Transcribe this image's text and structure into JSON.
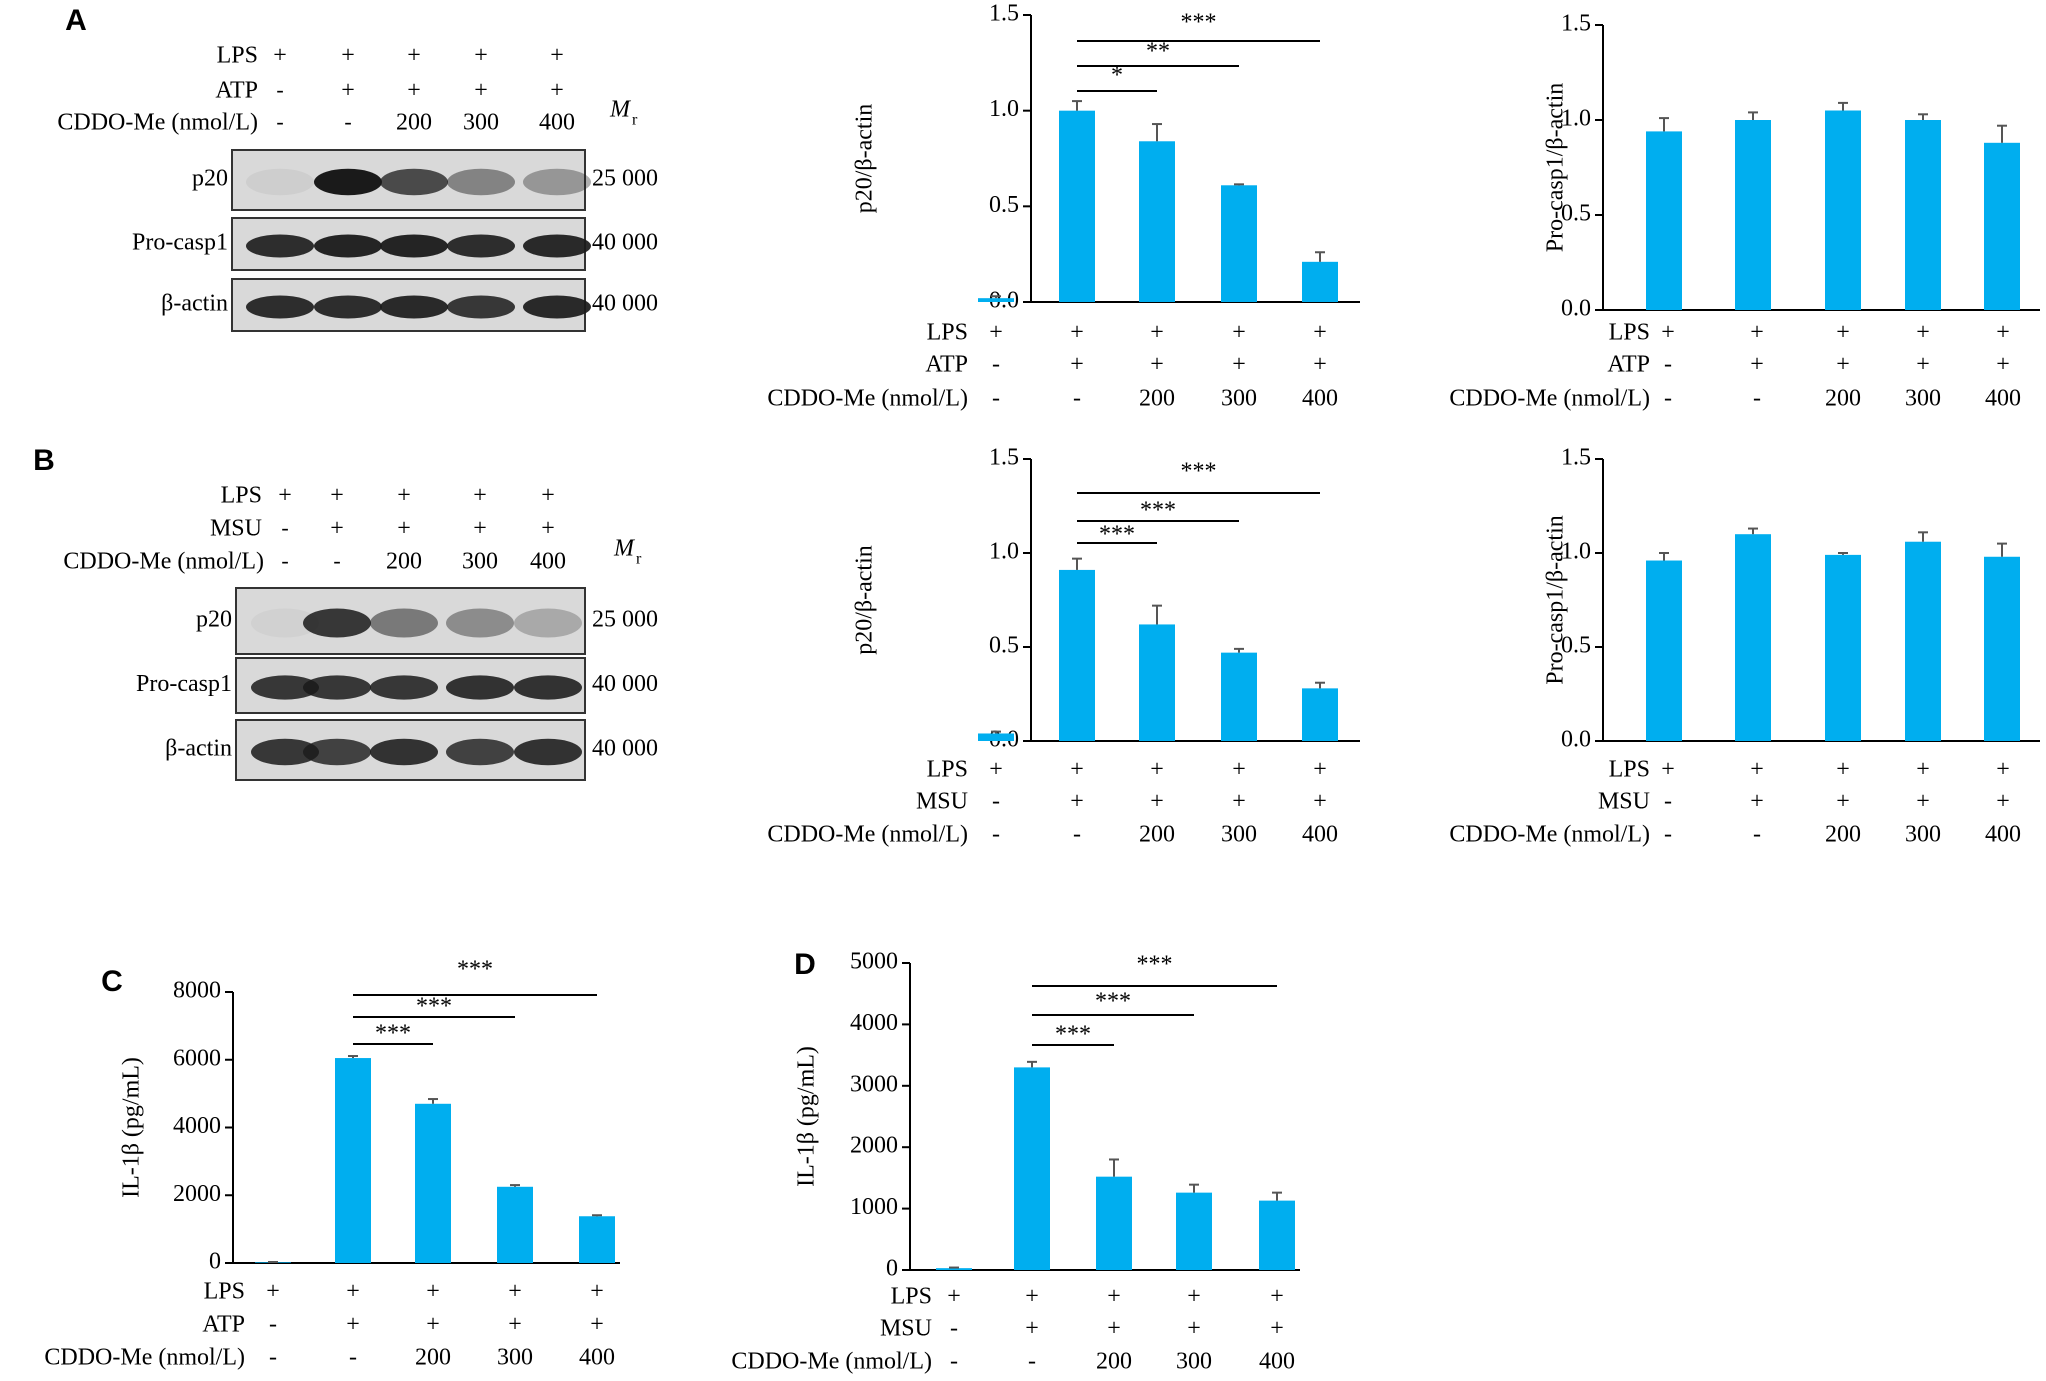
{
  "colors": {
    "bar": "#00AEEF",
    "axis": "#000000",
    "band": "#1a1a1a",
    "blot_bg": "#d9d9d9"
  },
  "rows": {
    "LPS": "LPS",
    "ATP": "ATP",
    "MSU": "MSU",
    "CDDO": "CDDO-Me (nmol/L)"
  },
  "conditions_lps": [
    "+",
    "+",
    "+",
    "+",
    "+"
  ],
  "conditions_stim": [
    "-",
    "+",
    "+",
    "+",
    "+"
  ],
  "conditions_dose": [
    "-",
    "-",
    "200",
    "300",
    "400"
  ],
  "blots": [
    {
      "panel": "A",
      "stim_label": "ATP",
      "mr_label": "M",
      "mr_sub": "r",
      "bands": [
        {
          "name": "p20",
          "mw": "25 000"
        },
        {
          "name": "Pro-casp1",
          "mw": "40 000"
        },
        {
          "name": "β-actin",
          "mw": "40 000"
        }
      ]
    },
    {
      "panel": "B",
      "stim_label": "MSU",
      "mr_label": "M",
      "mr_sub": "r",
      "bands": [
        {
          "name": "p20",
          "mw": "25 000"
        },
        {
          "name": "Pro-casp1",
          "mw": "40 000"
        },
        {
          "name": "β-actin",
          "mw": "40 000"
        }
      ]
    }
  ],
  "chart_data": [
    {
      "id": "A-p20",
      "type": "bar",
      "ylabel": "p20/β-actin",
      "ylim": [
        0,
        1.5
      ],
      "yticks": [
        "0.0",
        "0.5",
        "1.0",
        "1.5"
      ],
      "stim": "ATP",
      "values": [
        0.02,
        1.0,
        0.84,
        0.61,
        0.21
      ],
      "errors": [
        0.01,
        0.05,
        0.09,
        0.005,
        0.05
      ],
      "sig": [
        {
          "from": 1,
          "to": 2,
          "label": "*"
        },
        {
          "from": 1,
          "to": 3,
          "label": "**"
        },
        {
          "from": 1,
          "to": 4,
          "label": "***"
        }
      ]
    },
    {
      "id": "A-pro",
      "type": "bar",
      "ylabel": "Pro-casp1/β-actin",
      "ylim": [
        0,
        1.5
      ],
      "yticks": [
        "0.0",
        "0.5",
        "1.0",
        "1.5"
      ],
      "stim": "ATP",
      "values": [
        0.94,
        1.0,
        1.05,
        1.0,
        0.88
      ],
      "errors": [
        0.07,
        0.04,
        0.04,
        0.03,
        0.09
      ],
      "sig": []
    },
    {
      "id": "B-p20",
      "type": "bar",
      "ylabel": "p20/β-actin",
      "ylim": [
        0,
        1.5
      ],
      "yticks": [
        "0.0",
        "0.5",
        "1.0",
        "1.5"
      ],
      "stim": "MSU",
      "values": [
        0.04,
        0.91,
        0.62,
        0.47,
        0.28
      ],
      "errors": [
        0.01,
        0.06,
        0.1,
        0.02,
        0.03
      ],
      "sig": [
        {
          "from": 1,
          "to": 2,
          "label": "***"
        },
        {
          "from": 1,
          "to": 3,
          "label": "***"
        },
        {
          "from": 1,
          "to": 4,
          "label": "***"
        }
      ]
    },
    {
      "id": "B-pro",
      "type": "bar",
      "ylabel": "Pro-casp1/β-actin",
      "ylim": [
        0,
        1.5
      ],
      "yticks": [
        "0.0",
        "0.5",
        "1.0",
        "1.5"
      ],
      "stim": "MSU",
      "values": [
        0.96,
        1.1,
        0.99,
        1.06,
        0.98
      ],
      "errors": [
        0.04,
        0.03,
        0.01,
        0.05,
        0.07
      ],
      "sig": []
    },
    {
      "id": "C",
      "type": "bar",
      "panel": "C",
      "ylabel": "IL-1β (pg/mL)",
      "ylim": [
        0,
        8000
      ],
      "yticks": [
        "0",
        "2000",
        "4000",
        "6000",
        "8000"
      ],
      "stim": "ATP",
      "values": [
        20,
        6050,
        4700,
        2250,
        1380
      ],
      "errors": [
        10,
        60,
        140,
        50,
        30
      ],
      "sig": [
        {
          "from": 1,
          "to": 2,
          "label": "***"
        },
        {
          "from": 1,
          "to": 3,
          "label": "***"
        },
        {
          "from": 1,
          "to": 4,
          "label": "***"
        }
      ]
    },
    {
      "id": "D",
      "type": "bar",
      "panel": "D",
      "ylabel": "IL-1β (pg/mL)",
      "ylim": [
        0,
        5000
      ],
      "yticks": [
        "0",
        "1000",
        "2000",
        "3000",
        "4000",
        "5000"
      ],
      "stim": "MSU",
      "values": [
        30,
        3300,
        1520,
        1260,
        1130
      ],
      "errors": [
        10,
        90,
        280,
        130,
        130
      ],
      "sig": [
        {
          "from": 1,
          "to": 2,
          "label": "***"
        },
        {
          "from": 1,
          "to": 3,
          "label": "***"
        },
        {
          "from": 1,
          "to": 4,
          "label": "***"
        }
      ]
    }
  ]
}
